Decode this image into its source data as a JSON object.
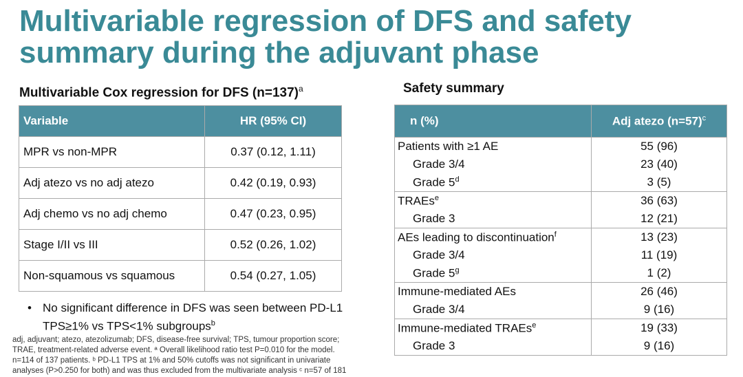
{
  "title": "Multivariable regression of DFS and safety summary during the adjuvant phase",
  "cox": {
    "heading": "Multivariable Cox regression for DFS (n=137)",
    "heading_sup": "a",
    "col_variable": "Variable",
    "col_hr": "HR (95% CI)",
    "rows": [
      {
        "variable": "MPR vs non-MPR",
        "hr": "0.37 (0.12, 1.11)"
      },
      {
        "variable": "Adj atezo vs no adj atezo",
        "hr": "0.42 (0.19, 0.93)"
      },
      {
        "variable": "Adj chemo vs no adj chemo",
        "hr": "0.47 (0.23, 0.95)"
      },
      {
        "variable": "Stage I/II vs III",
        "hr": "0.52 (0.26, 1.02)"
      },
      {
        "variable": "Non-squamous vs squamous",
        "hr": "0.54 (0.27, 1.05)"
      }
    ]
  },
  "safety": {
    "heading": "Safety summary",
    "col_n": "n (%)",
    "col_adj": "Adj atezo (n=57)",
    "col_adj_sup": "c",
    "rows": [
      {
        "label": "Patients with ≥1 AE",
        "sup": "",
        "value": "55 (96)"
      },
      {
        "label": "Grade 3/4",
        "sup": "",
        "value": "23 (40)"
      },
      {
        "label": "Grade 5",
        "sup": "d",
        "value": "3 (5)"
      },
      {
        "label": "TRAEs",
        "sup": "e",
        "value": "36 (63)"
      },
      {
        "label": "Grade 3",
        "sup": "",
        "value": "12 (21)"
      },
      {
        "label": "AEs leading to discontinuation",
        "sup": "f",
        "value": "13 (23)"
      },
      {
        "label": "Grade 3/4",
        "sup": "",
        "value": "11 (19)"
      },
      {
        "label": "Grade 5",
        "sup": "g",
        "value": "1 (2)"
      },
      {
        "label": "Immune-mediated AEs",
        "sup": "",
        "value": "26 (46)"
      },
      {
        "label": "Grade 3/4",
        "sup": "",
        "value": "9 (16)"
      },
      {
        "label": "Immune-mediated TRAEs",
        "sup": "e",
        "value": "19 (33)"
      },
      {
        "label": "Grade 3",
        "sup": "",
        "value": "9 (16)"
      }
    ]
  },
  "bullet": {
    "marker": "•",
    "text": "No significant difference in DFS was seen between PD-L1 TPS≥1% vs TPS<1% subgroups",
    "sup": "b"
  },
  "footnote": {
    "line1": "adj, adjuvant; atezo, atezolizumab; DFS, disease-free survival; TPS, tumour proportion score;",
    "line2": "TRAE, treatment-related adverse event. ª Overall likelihood ratio test P=0.010 for the model.",
    "line3": "n=114 of 137 patients. ᵇ PD-L1 TPS at 1% and 50% cutoffs was not significant in univariate",
    "line4": "analyses (P>0.250 for both) and was thus excluded from the multivariate analysis ᶜ n=57 of 181"
  }
}
